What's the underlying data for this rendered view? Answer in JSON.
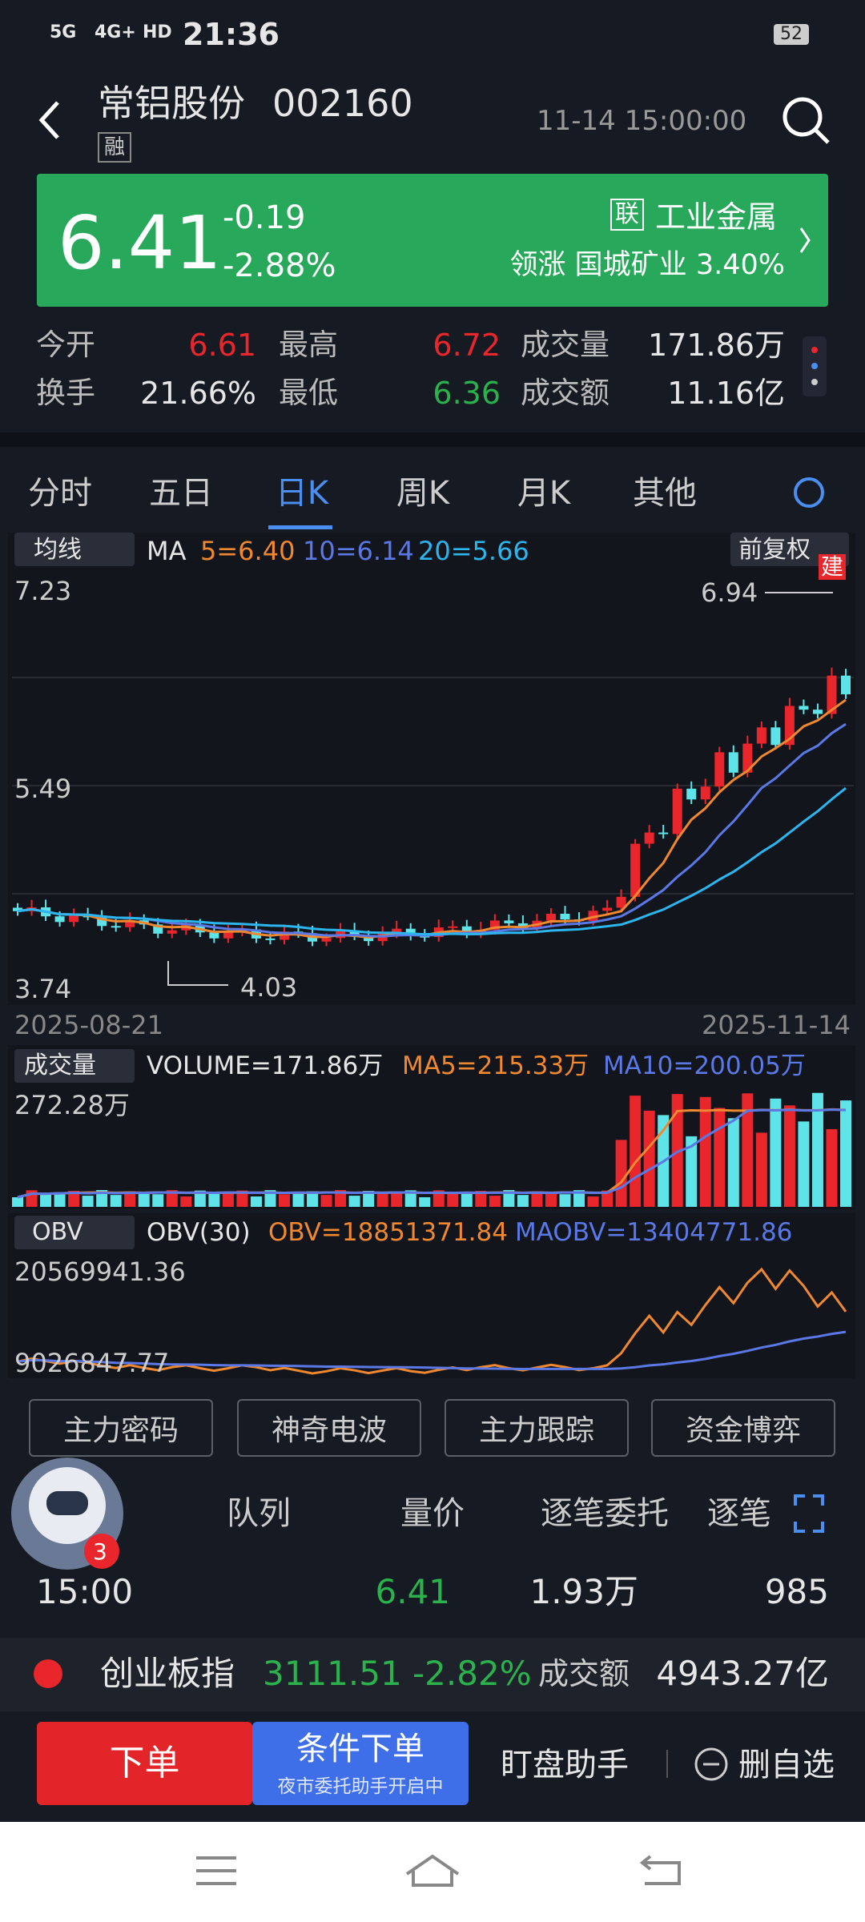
{
  "status": {
    "net1": "5G",
    "net2": "4G+",
    "hd": "HD",
    "time": "21:36",
    "battery": "52"
  },
  "header": {
    "title": "常铝股份",
    "code": "002160",
    "tag": "融",
    "datetime": "11-14 15:00:00"
  },
  "quote": {
    "price": "6.41",
    "change": "-0.19",
    "pct": "-2.88%",
    "sector_tag": "联",
    "sector": "工业金属",
    "lead_label": "领涨",
    "lead_name": "国城矿业",
    "lead_pct": "3.40%"
  },
  "stats": {
    "rows": [
      [
        [
          "今开",
          "6.61"
        ],
        [
          "最高",
          "6.72"
        ],
        [
          "成交量",
          "171.86万"
        ]
      ],
      [
        [
          "换手",
          "21.66%"
        ],
        [
          "最低",
          "6.36"
        ],
        [
          "成交额",
          "11.16亿"
        ]
      ]
    ]
  },
  "tabs": [
    "分时",
    "五日",
    "日K",
    "周K",
    "月K",
    "其他"
  ],
  "kchart": {
    "indicator": "均线",
    "ma_label": "MA",
    "ma5": "5=6.40",
    "ma10": "10=6.14",
    "ma20": "20=5.66",
    "adjust": "前复权",
    "badge": "建",
    "y_top": "7.23",
    "y_mid": "5.49",
    "y_bot": "3.74",
    "high": "6.94",
    "low": "4.03",
    "date_start": "2025-08-21",
    "date_end": "2025-11-14"
  },
  "volume": {
    "selector": "成交量",
    "label": "VOLUME=171.86万",
    "ma5": "MA5=215.33万",
    "ma10": "MA10=200.05万",
    "top": "272.28万"
  },
  "obv": {
    "selector": "OBV",
    "label": "OBV(30)",
    "obv": "OBV=18851371.84",
    "maobv": "MAOBV=13404771.86",
    "top": "20569941.36",
    "bottom": "9026847.77"
  },
  "tools": [
    "主力密码",
    "神奇电波",
    "主力跟踪",
    "资金博弈"
  ],
  "orders": {
    "headers": [
      "队列",
      "量价",
      "逐笔委托",
      "逐笔"
    ],
    "badge": "3",
    "row": [
      "15:00",
      "6.41",
      "1.93万",
      "985"
    ]
  },
  "index": {
    "name": "创业板指",
    "value": "3111.51",
    "pct": "-2.82%",
    "amount_label": "成交额",
    "amount": "4943.27亿"
  },
  "bottom": {
    "order": "下单",
    "cond": "条件下单",
    "cond_sub": "夜市委托助手开启中",
    "helper": "盯盘助手",
    "remove": "删自选"
  }
}
